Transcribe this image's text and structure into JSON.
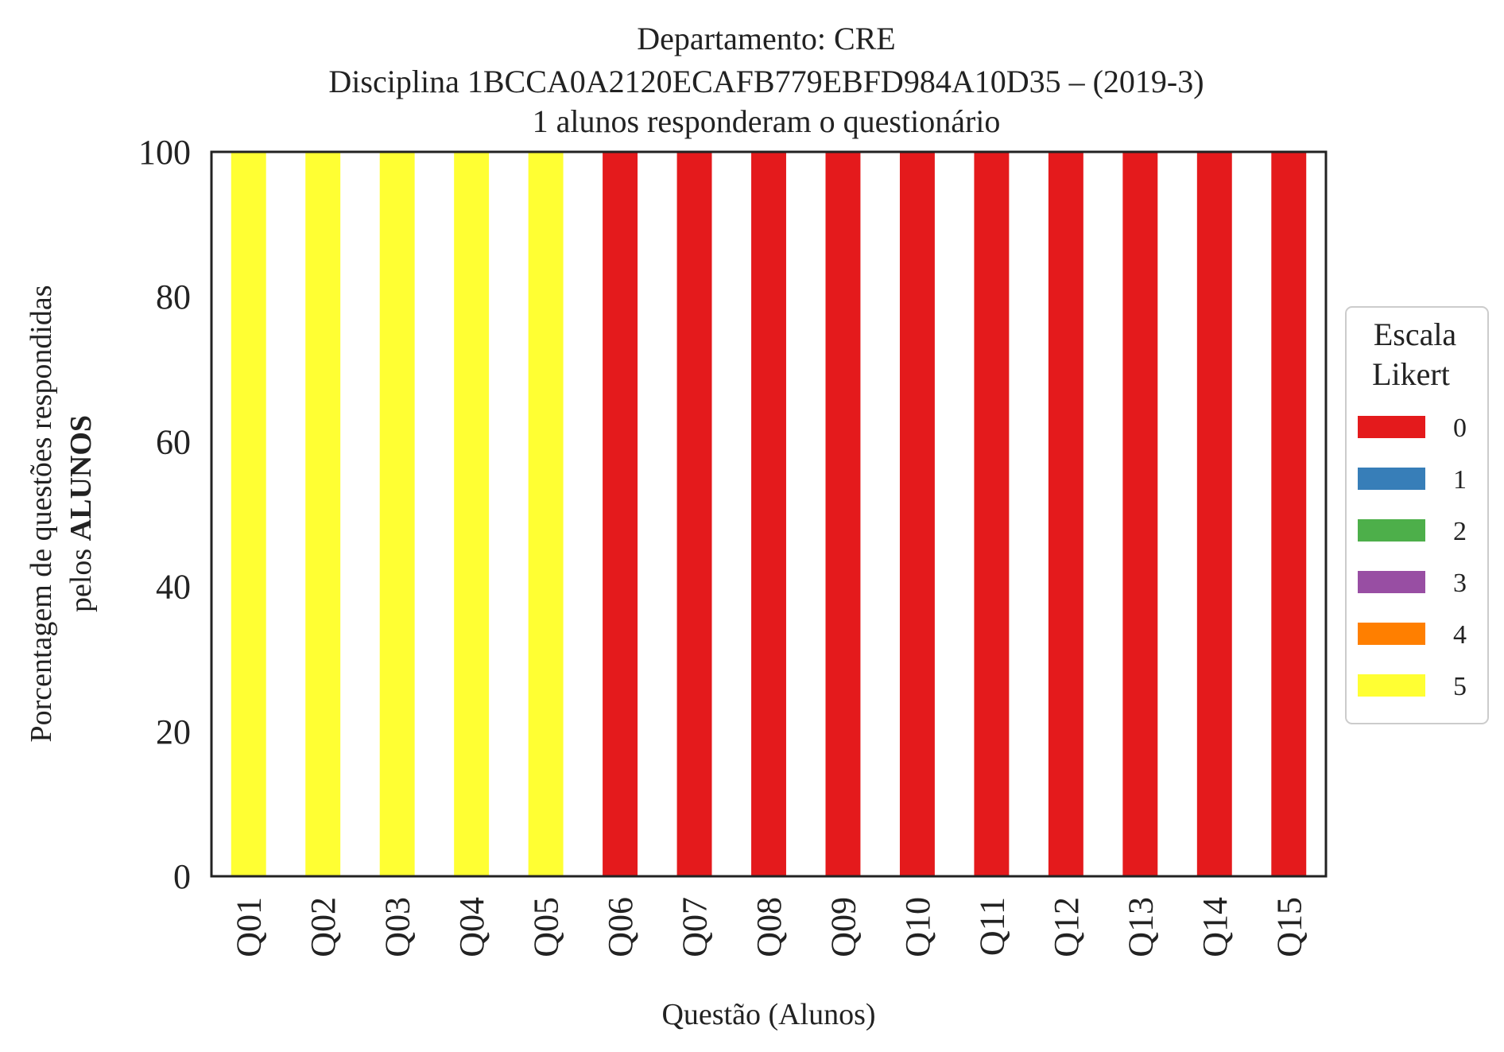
{
  "chart_data": {
    "type": "bar",
    "stacked": true,
    "title_lines": [
      "Departamento: CRE",
      "Disciplina 1BCCA0A2120ECAFB779EBFD984A10D35 – (2019-3)",
      "1 alunos responderam o questionário"
    ],
    "xlabel": "Questão (Alunos)",
    "ylabel_line1": "Porcentagem de questões respondidas",
    "ylabel_line2_prefix": "pelos ",
    "ylabel_line2_bold": "ALUNOS",
    "ylim": [
      0,
      100
    ],
    "yticks": [
      "0",
      "20",
      "40",
      "60",
      "80",
      "100"
    ],
    "categories": [
      "Q01",
      "Q02",
      "Q03",
      "Q04",
      "Q05",
      "Q06",
      "Q07",
      "Q08",
      "Q09",
      "Q10",
      "Q11",
      "Q12",
      "Q13",
      "Q14",
      "Q15"
    ],
    "series": [
      {
        "name": "0",
        "color": "#e41a1c",
        "values": [
          0,
          0,
          0,
          0,
          0,
          100,
          100,
          100,
          100,
          100,
          100,
          100,
          100,
          100,
          100
        ]
      },
      {
        "name": "1",
        "color": "#377eb8",
        "values": [
          0,
          0,
          0,
          0,
          0,
          0,
          0,
          0,
          0,
          0,
          0,
          0,
          0,
          0,
          0
        ]
      },
      {
        "name": "2",
        "color": "#4daf4a",
        "values": [
          0,
          0,
          0,
          0,
          0,
          0,
          0,
          0,
          0,
          0,
          0,
          0,
          0,
          0,
          0
        ]
      },
      {
        "name": "3",
        "color": "#984ea3",
        "values": [
          0,
          0,
          0,
          0,
          0,
          0,
          0,
          0,
          0,
          0,
          0,
          0,
          0,
          0,
          0
        ]
      },
      {
        "name": "4",
        "color": "#ff7f00",
        "values": [
          0,
          0,
          0,
          0,
          0,
          0,
          0,
          0,
          0,
          0,
          0,
          0,
          0,
          0,
          0
        ]
      },
      {
        "name": "5",
        "color": "#ffff33",
        "values": [
          100,
          100,
          100,
          100,
          100,
          0,
          0,
          0,
          0,
          0,
          0,
          0,
          0,
          0,
          0
        ]
      }
    ],
    "legend": {
      "title_lines": [
        "Escala",
        "Likert"
      ],
      "placement": "right"
    },
    "grid": false
  }
}
